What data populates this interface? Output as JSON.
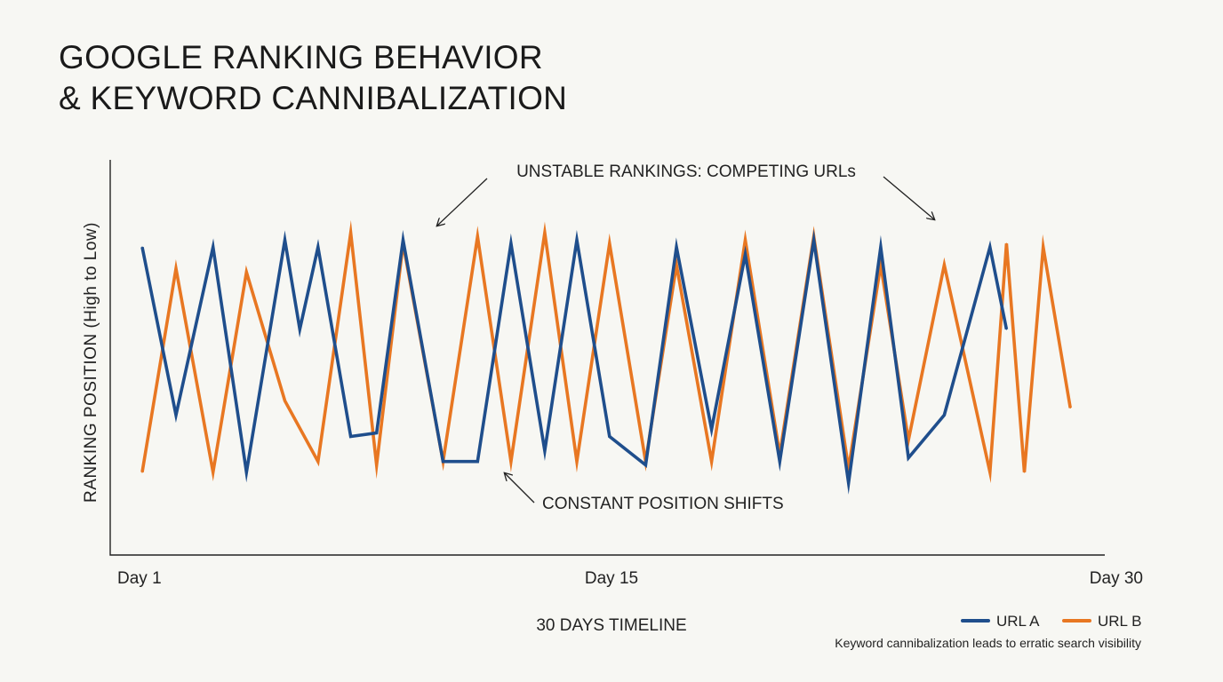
{
  "chart_data": {
    "type": "line",
    "title_line1": "GOOGLE RANKING BEHAVIOR",
    "title_line2": "& KEYWORD CANNIBALIZATION",
    "xlabel": "30 DAYS TIMELINE",
    "ylabel": "RANKING POSITION (High to Low)",
    "x_ticks": [
      "Day 1",
      "Day 15",
      "Day 30"
    ],
    "x_tick_values": [
      1,
      15,
      30
    ],
    "xlim": [
      1,
      30
    ],
    "ylim": [
      1,
      10
    ],
    "y_direction": "high-to-low",
    "grid": false,
    "legend_position": "bottom-right",
    "annotations": [
      "UNSTABLE RANKINGS: COMPETING URLs",
      "CONSTANT POSITION SHIFTS"
    ],
    "footnote": "Keyword cannibalization leads to erratic search visibility",
    "series": [
      {
        "name": "URL A",
        "color": "#1f4e8c",
        "x": [
          1,
          2.02,
          3.14,
          4.15,
          5.31,
          5.76,
          6.31,
          7.3,
          8.08,
          8.88,
          10.09,
          11.13,
          12.14,
          13.16,
          14.13,
          15.12,
          16.21,
          17.14,
          18.2,
          19.22,
          20.26,
          21.29,
          22.34,
          23.31,
          24.15,
          25.23,
          26.61,
          27.11
        ],
        "values": [
          2.5,
          7.2,
          2.5,
          8.8,
          2.3,
          4.8,
          2.5,
          7.8,
          7.7,
          2.3,
          8.5,
          8.5,
          2.4,
          8.2,
          2.3,
          7.8,
          8.6,
          2.5,
          7.6,
          2.7,
          8.5,
          2.3,
          9.1,
          2.5,
          8.4,
          7.2,
          2.5,
          4.8
        ]
      },
      {
        "name": "URL B",
        "color": "#e87722",
        "x": [
          1,
          2.02,
          3.14,
          4.15,
          5.31,
          6.31,
          7.3,
          8.08,
          8.88,
          10.09,
          11.13,
          12.14,
          13.16,
          14.13,
          15.12,
          16.21,
          17.14,
          18.2,
          19.22,
          20.26,
          21.29,
          22.34,
          23.31,
          24.15,
          25.23,
          26.61,
          27.11,
          27.65,
          28.22,
          29.04
        ],
        "values": [
          8.8,
          3.1,
          8.8,
          3.2,
          6.8,
          8.5,
          2.1,
          8.6,
          2.4,
          8.5,
          2.2,
          8.5,
          2.1,
          8.5,
          2.4,
          8.5,
          3.0,
          8.5,
          2.3,
          8.3,
          2.2,
          8.7,
          3.0,
          7.9,
          3.0,
          8.8,
          2.4,
          8.8,
          2.5,
          7.0
        ]
      }
    ]
  }
}
